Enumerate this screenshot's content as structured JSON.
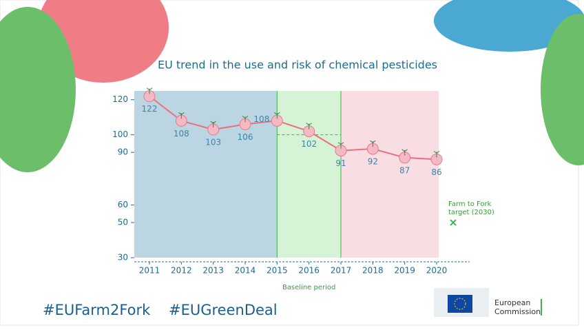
{
  "chart_data": {
    "type": "line",
    "title": "EU trend in the use and risk of chemical pesticides",
    "x": [
      2011,
      2012,
      2013,
      2014,
      2015,
      2016,
      2017,
      2018,
      2019,
      2020
    ],
    "xlim": [
      2011,
      2020
    ],
    "xticks": [
      2011,
      2012,
      2013,
      2014,
      2015,
      2016,
      2017,
      2018,
      2019,
      2020
    ],
    "series": [
      {
        "color": "#e8707f",
        "values": [
          122,
          108,
          103,
          106,
          108,
          102,
          91,
          92,
          87,
          86
        ]
      }
    ],
    "ylim": [
      30,
      125
    ],
    "yticks": [
      30,
      50,
      60,
      90,
      100,
      120
    ],
    "baseline": {
      "label": "Baseline period",
      "start": 2015,
      "end": 2017,
      "value": 100
    },
    "target": {
      "label": "Farm to Fork target (2030)",
      "value": 50
    }
  },
  "footer": {
    "hashtags": [
      "#EUFarm2Fork",
      "#EUGreenDeal"
    ],
    "logo": "European Commission"
  }
}
